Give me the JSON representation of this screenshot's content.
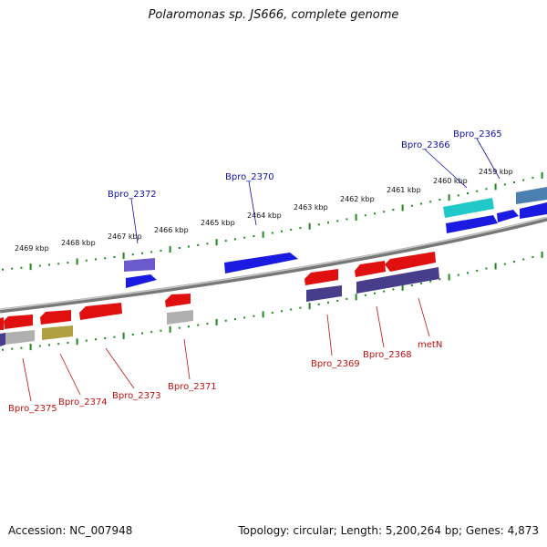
{
  "title": "Polaromonas sp. JS666, complete genome",
  "footer": {
    "accession": "Accession: NC_007948",
    "stats": "Topology: circular; Length: 5,200,264 bp; Genes: 4,873"
  },
  "colors": {
    "backbone": "#8a8a8a",
    "tick": "#1a8a1a",
    "forward_label": "#1010b0",
    "reverse_label": "#c01010"
  },
  "scale_labels": [
    "2459 kbp",
    "2460 kbp",
    "2461 kbp",
    "2462 kbp",
    "2463 kbp",
    "2464 kbp",
    "2465 kbp",
    "2466 kbp",
    "2467 kbp",
    "2468 kbp",
    "2469 kbp"
  ],
  "gene_labels": {
    "forward": [
      "Bpro_2365",
      "Bpro_2366",
      "Bpro_2370",
      "Bpro_2372"
    ],
    "reverse": [
      "Bpro_2368",
      "metN",
      "Bpro_2369",
      "Bpro_2371",
      "Bpro_2373",
      "Bpro_2374",
      "Bpro_2375"
    ]
  }
}
